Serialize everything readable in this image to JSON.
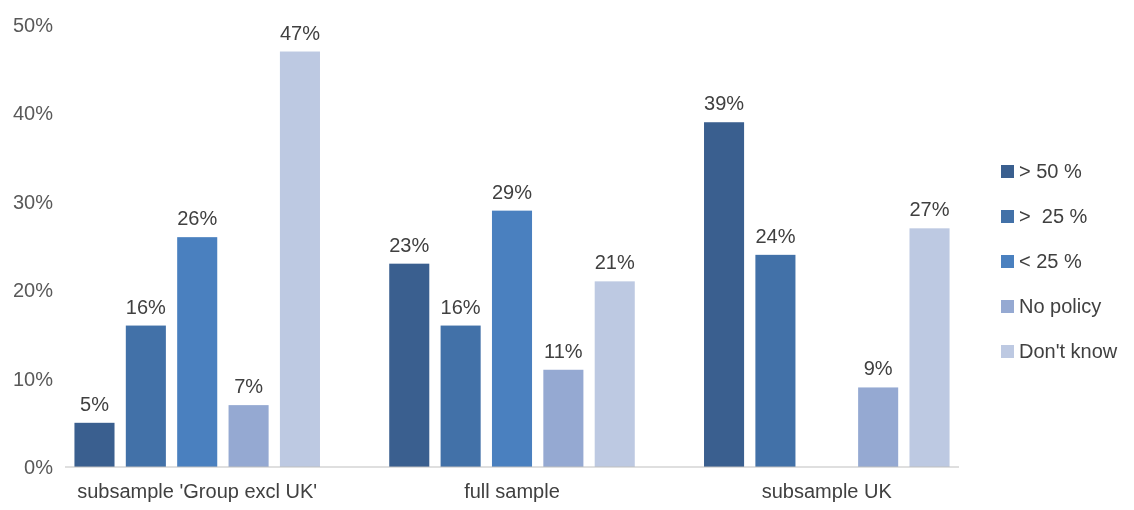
{
  "chart_data": {
    "type": "bar",
    "categories": [
      "subsample 'Group excl UK'",
      "full sample",
      "subsample UK"
    ],
    "series": [
      {
        "name": "> 50 %",
        "color": "#3a5f8f",
        "values": [
          5,
          23,
          39
        ],
        "value_labels": [
          "5%",
          "23%",
          "39%"
        ]
      },
      {
        "name": ">  25 %",
        "color": "#4271a8",
        "values": [
          16,
          16,
          24
        ],
        "value_labels": [
          "16%",
          "16%",
          "24%"
        ]
      },
      {
        "name": "< 25 %",
        "color": "#4a80bf",
        "values": [
          26,
          29,
          null
        ],
        "value_labels": [
          "26%",
          "29%",
          null
        ]
      },
      {
        "name": "No policy",
        "color": "#95a9d2",
        "values": [
          7,
          11,
          9
        ],
        "value_labels": [
          "7%",
          "11%",
          "9%"
        ]
      },
      {
        "name": "Don't know",
        "color": "#bdc9e2",
        "values": [
          47,
          21,
          27
        ],
        "value_labels": [
          "47%",
          "21%",
          "27%"
        ]
      }
    ],
    "ylim": [
      0,
      50
    ],
    "yticks": [
      {
        "value": 0,
        "label": "0%"
      },
      {
        "value": 10,
        "label": "10%"
      },
      {
        "value": 20,
        "label": "20%"
      },
      {
        "value": 30,
        "label": "30%"
      },
      {
        "value": 40,
        "label": "40%"
      },
      {
        "value": 50,
        "label": "50%"
      }
    ],
    "legend": "right"
  }
}
